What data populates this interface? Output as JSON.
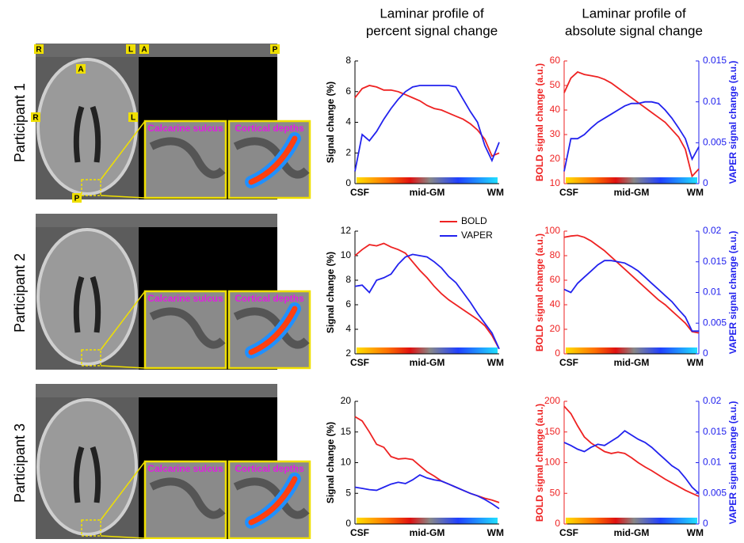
{
  "headers": [
    [
      "Laminar profile of",
      "percent signal change"
    ],
    [
      "Laminar profile of",
      "absolute signal change"
    ]
  ],
  "participants": [
    "Participant 1",
    "Participant 2",
    "Participant 3"
  ],
  "orientation_labels": [
    "R",
    "L",
    "A",
    "P",
    "A",
    "R",
    "L",
    "P"
  ],
  "inset_labels": [
    "Calcarine sulcus",
    "Cortical depths"
  ],
  "chart_data": [
    {
      "type": "line",
      "ylabel": "Signal change (%)",
      "categories": [
        "CSF",
        null,
        null,
        null,
        null,
        null,
        null,
        null,
        null,
        null,
        "mid-GM",
        null,
        null,
        null,
        null,
        null,
        null,
        null,
        null,
        null,
        "WM"
      ],
      "ylim": [
        0,
        8
      ],
      "yticks": [
        0,
        2,
        4,
        6,
        8
      ],
      "series": [
        {
          "name": "BOLD",
          "color": "#ee2222",
          "values": [
            5.6,
            6.2,
            6.4,
            6.3,
            6.1,
            6.1,
            6.0,
            5.8,
            5.6,
            5.4,
            5.1,
            4.9,
            4.8,
            4.6,
            4.4,
            4.2,
            3.9,
            3.5,
            2.9,
            1.8,
            2.0
          ]
        },
        {
          "name": "VAPER",
          "color": "#2222ee",
          "values": [
            0.8,
            3.2,
            2.8,
            3.4,
            4.2,
            4.9,
            5.5,
            6.0,
            6.3,
            6.4,
            6.4,
            6.4,
            6.4,
            6.4,
            6.3,
            5.5,
            4.7,
            4.0,
            2.5,
            1.5,
            2.7
          ]
        }
      ]
    },
    {
      "type": "line",
      "ylabel": "BOLD signal change (a.u.)",
      "y2label": "VAPER signal change (a.u.)",
      "categories": [
        "CSF",
        null,
        null,
        null,
        null,
        null,
        null,
        null,
        null,
        null,
        "mid-GM",
        null,
        null,
        null,
        null,
        null,
        null,
        null,
        null,
        null,
        "WM"
      ],
      "ylim": [
        10,
        60
      ],
      "yticks": [
        10,
        20,
        30,
        40,
        50,
        60
      ],
      "y2lim": [
        0,
        0.015
      ],
      "y2ticks": [
        0,
        0.005,
        0.01,
        0.015
      ],
      "series": [
        {
          "name": "BOLD",
          "color": "#ee2222",
          "values": [
            47,
            53,
            55.5,
            54.5,
            54,
            53.5,
            52.5,
            51,
            49,
            47,
            45,
            43,
            41,
            39,
            37,
            35,
            32,
            29,
            24,
            13,
            16
          ]
        },
        {
          "name": "VAPER",
          "color": "#2222ee",
          "axis": "y2",
          "values": [
            0.0015,
            0.0055,
            0.0055,
            0.006,
            0.0068,
            0.0075,
            0.008,
            0.0085,
            0.009,
            0.0095,
            0.0098,
            0.0098,
            0.01,
            0.01,
            0.0098,
            0.009,
            0.008,
            0.0068,
            0.0055,
            0.003,
            0.0045
          ]
        }
      ]
    },
    {
      "type": "line",
      "ylabel": "Signal change (%)",
      "legend": "upper right",
      "categories": [
        "CSF",
        null,
        null,
        null,
        null,
        null,
        null,
        null,
        null,
        null,
        "mid-GM",
        null,
        null,
        null,
        null,
        null,
        null,
        null,
        null,
        null,
        "WM"
      ],
      "ylim": [
        2,
        12
      ],
      "yticks": [
        2,
        4,
        6,
        8,
        10,
        12
      ],
      "series": [
        {
          "name": "BOLD",
          "color": "#ee2222",
          "values": [
            10.0,
            10.5,
            10.9,
            10.8,
            11.0,
            10.7,
            10.5,
            10.2,
            9.5,
            8.8,
            8.2,
            7.5,
            6.9,
            6.4,
            6.0,
            5.6,
            5.2,
            4.8,
            4.3,
            3.5,
            2.4
          ]
        },
        {
          "name": "VAPER",
          "color": "#2222ee",
          "values": [
            7.5,
            7.6,
            7.0,
            8.0,
            8.2,
            8.5,
            9.3,
            9.9,
            10.1,
            10.0,
            9.9,
            9.5,
            9.0,
            8.3,
            7.8,
            7.0,
            6.2,
            5.3,
            4.5,
            3.7,
            2.4
          ]
        }
      ]
    },
    {
      "type": "line",
      "ylabel": "BOLD signal change (a.u.)",
      "y2label": "VAPER signal change (a.u.)",
      "categories": [
        "CSF",
        null,
        null,
        null,
        null,
        null,
        null,
        null,
        null,
        null,
        "mid-GM",
        null,
        null,
        null,
        null,
        null,
        null,
        null,
        null,
        null,
        "WM"
      ],
      "ylim": [
        0,
        100
      ],
      "yticks": [
        0,
        20,
        40,
        60,
        80,
        100
      ],
      "y2lim": [
        0,
        0.02
      ],
      "y2ticks": [
        0,
        0.005,
        0.01,
        0.015,
        0.02
      ],
      "series": [
        {
          "name": "BOLD",
          "color": "#ee2222",
          "values": [
            95,
            96,
            96.5,
            95,
            92,
            88,
            84,
            79,
            74,
            69,
            64,
            59,
            54,
            49,
            44,
            40,
            35,
            30,
            25,
            18,
            17
          ]
        },
        {
          "name": "VAPER",
          "color": "#2222ee",
          "axis": "y2",
          "values": [
            0.0105,
            0.01,
            0.0115,
            0.0125,
            0.0135,
            0.0145,
            0.0152,
            0.0152,
            0.015,
            0.0148,
            0.0142,
            0.0135,
            0.0125,
            0.0115,
            0.0105,
            0.0095,
            0.0085,
            0.0072,
            0.006,
            0.0037,
            0.0037
          ]
        }
      ]
    },
    {
      "type": "line",
      "ylabel": "Signal change (%)",
      "categories": [
        "CSF",
        null,
        null,
        null,
        null,
        null,
        null,
        null,
        null,
        null,
        "mid-GM",
        null,
        null,
        null,
        null,
        null,
        null,
        null,
        null,
        null,
        "WM"
      ],
      "ylim": [
        0,
        20
      ],
      "yticks": [
        0,
        5,
        10,
        15,
        20
      ],
      "series": [
        {
          "name": "BOLD",
          "color": "#ee2222",
          "values": [
            17.5,
            16.8,
            15.0,
            13.0,
            12.5,
            11.0,
            10.6,
            10.7,
            10.5,
            9.5,
            8.5,
            7.8,
            7.0,
            6.5,
            6.0,
            5.5,
            5.0,
            4.6,
            4.2,
            3.9,
            3.5
          ]
        },
        {
          "name": "VAPER",
          "color": "#2222ee",
          "values": [
            6.0,
            5.8,
            5.6,
            5.5,
            6.0,
            6.5,
            6.8,
            6.6,
            7.2,
            8.0,
            7.5,
            7.2,
            7.0,
            6.5,
            6.0,
            5.5,
            5.0,
            4.6,
            4.0,
            3.3,
            2.5
          ]
        }
      ]
    },
    {
      "type": "line",
      "ylabel": "BOLD signal change (a.u.)",
      "y2label": "VAPER signal change (a.u.)",
      "categories": [
        "CSF",
        null,
        null,
        null,
        null,
        null,
        null,
        null,
        null,
        null,
        "mid-GM",
        null,
        null,
        null,
        null,
        null,
        null,
        null,
        null,
        null,
        "WM"
      ],
      "ylim": [
        0,
        200
      ],
      "yticks": [
        0,
        50,
        100,
        150,
        200
      ],
      "y2lim": [
        0,
        0.02
      ],
      "y2ticks": [
        0,
        0.005,
        0.01,
        0.015,
        0.02
      ],
      "series": [
        {
          "name": "BOLD",
          "color": "#ee2222",
          "values": [
            192,
            180,
            160,
            142,
            132,
            125,
            118,
            115,
            117,
            115,
            108,
            100,
            93,
            87,
            80,
            73,
            67,
            61,
            55,
            50,
            45
          ]
        },
        {
          "name": "VAPER",
          "color": "#2222ee",
          "axis": "y2",
          "values": [
            0.0133,
            0.0128,
            0.0122,
            0.0118,
            0.0125,
            0.013,
            0.0128,
            0.0135,
            0.0142,
            0.0152,
            0.0145,
            0.0138,
            0.0133,
            0.0125,
            0.0115,
            0.0105,
            0.0095,
            0.0088,
            0.0075,
            0.006,
            0.005
          ]
        }
      ]
    }
  ]
}
